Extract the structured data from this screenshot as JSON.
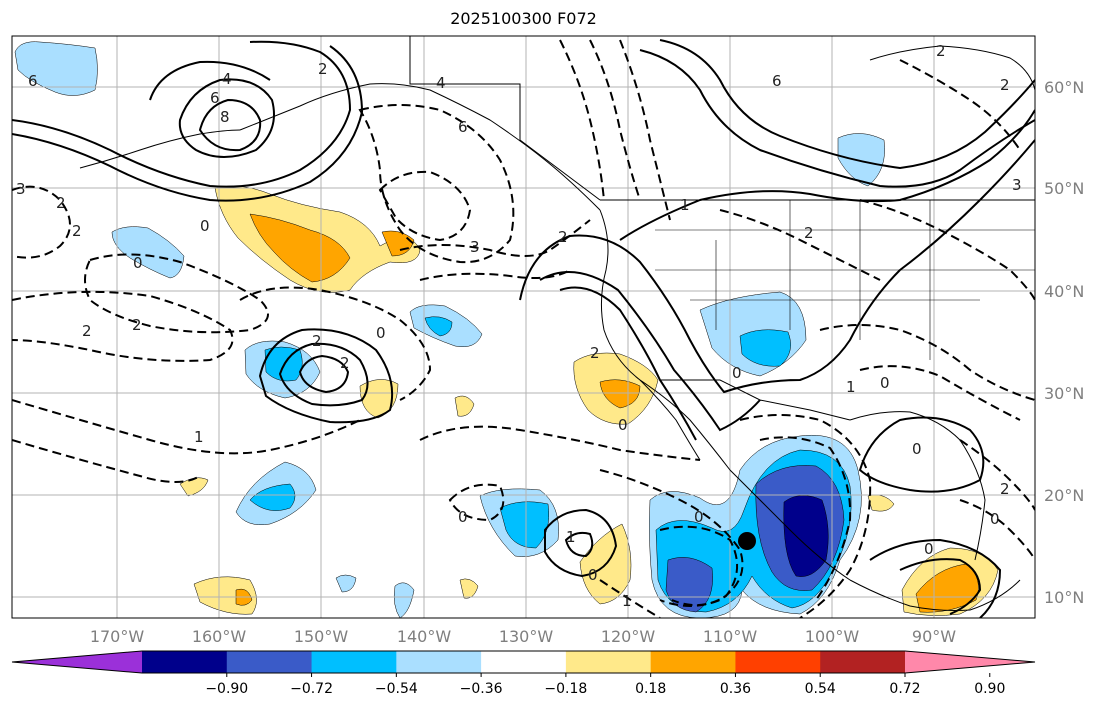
{
  "title": "2025100300 F072",
  "map": {
    "lat_ticks": [
      "60°N",
      "50°N",
      "40°N",
      "30°N",
      "20°N",
      "10°N"
    ],
    "lon_ticks": [
      "170°W",
      "160°W",
      "150°W",
      "140°W",
      "130°W",
      "120°W",
      "110°W",
      "100°W",
      "90°W"
    ],
    "contour_labels": [
      "6",
      "4",
      "6",
      "8",
      "2",
      "0",
      "2",
      "2",
      "2",
      "0",
      "2",
      "2",
      "2",
      "1",
      "0",
      "3",
      "3",
      "6",
      "4",
      "2",
      "2",
      "2",
      "0",
      "1",
      "6",
      "2",
      "2",
      "3",
      "0",
      "0",
      "1",
      "0",
      "2",
      "0",
      "0",
      "0",
      "0",
      "1",
      "0",
      "1"
    ],
    "marker": "black-dot",
    "colors": {
      "land_outline": "#000000",
      "grid": "#b3b3b3",
      "axis_label": "#7f7f7f"
    }
  },
  "colorbar": {
    "tick_labels": [
      "−0.90",
      "−0.72",
      "−0.54",
      "−0.36",
      "−0.18",
      "0.18",
      "0.36",
      "0.54",
      "0.72",
      "0.90"
    ],
    "segments": [
      "#9b30d9",
      "#00008b",
      "#3a5bc8",
      "#00bfff",
      "#aadfff",
      "#ffffff",
      "#ffe98a",
      "#ffa500",
      "#ff4000",
      "#b22222",
      "#ff88aa"
    ]
  }
}
